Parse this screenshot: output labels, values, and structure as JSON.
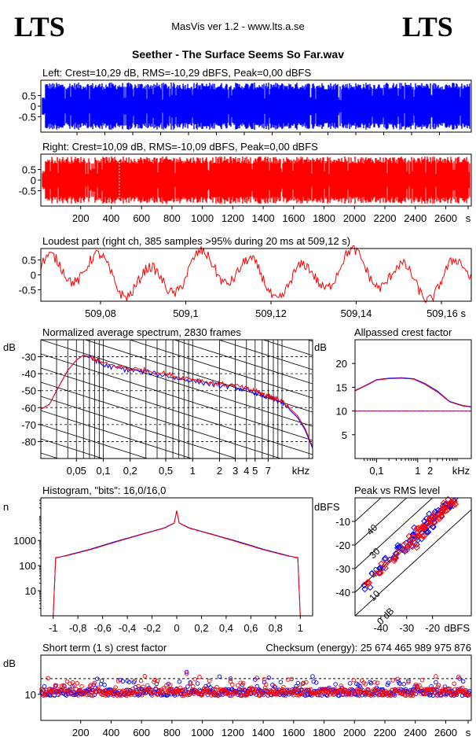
{
  "header": {
    "logo_left": "LTS",
    "logo_right": "LTS",
    "app_title": "MasVis ver 1.2 - www.lts.a.se",
    "file_title": "Seether - The Surface Seems So Far.wav"
  },
  "colors": {
    "left_channel": "#0000ff",
    "right_channel": "#ff0000",
    "axis": "#000000"
  },
  "chart_data": [
    {
      "id": "left_waveform",
      "type": "area",
      "title": "Left: Crest=10,29 dB, RMS=-10,29 dBFS, Peak=0,00 dBFS",
      "yticks": [
        "0.5",
        "0",
        "-0.5"
      ],
      "ylim": [
        -1,
        1
      ],
      "xlim": [
        0,
        2830
      ],
      "color": "#0000ff"
    },
    {
      "id": "right_waveform",
      "type": "area",
      "title": "Right: Crest=10,09 dB, RMS=-10,09 dBFS, Peak=0,00 dBFS",
      "yticks": [
        "0.5",
        "0",
        "-0.5"
      ],
      "xticks": [
        "200",
        "400",
        "600",
        "800",
        "1000",
        "1200",
        "1400",
        "1600",
        "1800",
        "2000",
        "2200",
        "2400",
        "2600",
        "s"
      ],
      "ylim": [
        -1,
        1
      ],
      "xlim": [
        0,
        2830
      ],
      "color": "#ff0000"
    },
    {
      "id": "loudest_part",
      "type": "line",
      "title": "Loudest part (right ch, 385 samples >95% during 20 ms at 509,12 s)",
      "yticks": [
        "0.5",
        "0",
        "-0.5"
      ],
      "xticks": [
        "509,08",
        "509,1",
        "509,12",
        "509,14",
        "509,16 s"
      ],
      "xlim": [
        509.066,
        509.167
      ],
      "ylim": [
        -1,
        1
      ],
      "color": "#ff0000"
    },
    {
      "id": "spectrum",
      "type": "line",
      "title": "Normalized average spectrum, 2830 frames",
      "ylabel": "dB",
      "yticks": [
        "-30",
        "-40",
        "-50",
        "-60",
        "-70",
        "-80"
      ],
      "xticks": [
        "0,05",
        "0,1",
        "0,2",
        "0,5",
        "1",
        "2",
        "3",
        "4",
        "5",
        "7",
        "kHz"
      ],
      "xscale": "log",
      "xlim": [
        0.02,
        22
      ],
      "ylim": [
        -90,
        -20
      ],
      "series": [
        {
          "color": "#0000ff",
          "x": [
            0.02,
            0.025,
            0.03,
            0.04,
            0.05,
            0.06,
            0.08,
            0.1,
            0.15,
            0.2,
            0.3,
            0.5,
            0.7,
            1,
            1.5,
            2,
            3,
            4,
            5,
            6,
            7,
            8,
            10,
            12,
            15,
            18,
            22
          ],
          "y": [
            -61,
            -58,
            -50,
            -38,
            -32,
            -29,
            -32,
            -35,
            -37,
            -38,
            -39,
            -41,
            -43,
            -44,
            -46,
            -47,
            -48,
            -50,
            -51,
            -53,
            -54,
            -55,
            -57,
            -61,
            -66,
            -73,
            -84
          ]
        },
        {
          "color": "#ff0000",
          "x": [
            0.02,
            0.025,
            0.03,
            0.04,
            0.05,
            0.06,
            0.08,
            0.1,
            0.15,
            0.2,
            0.3,
            0.5,
            0.7,
            1,
            1.5,
            2,
            3,
            4,
            5,
            6,
            7,
            8,
            10,
            12,
            15,
            18,
            22
          ],
          "y": [
            -61,
            -58,
            -50,
            -38,
            -32,
            -29,
            -31,
            -34,
            -36,
            -37,
            -38,
            -40,
            -42,
            -43,
            -45,
            -46,
            -47,
            -49,
            -50,
            -52,
            -53,
            -54,
            -56,
            -60,
            -65,
            -72,
            -83
          ]
        }
      ]
    },
    {
      "id": "allpassed_crest",
      "type": "line",
      "title": "Allpassed crest factor",
      "ylabel": "dB",
      "yticks": [
        "20",
        "15",
        "10",
        "5"
      ],
      "xticks": [
        "0,1",
        "1",
        "2",
        "kHz"
      ],
      "xscale": "log",
      "xlim": [
        0.03,
        20
      ],
      "ylim": [
        0,
        25
      ],
      "reference_level": 10,
      "series": [
        {
          "color": "#0000ff",
          "x": [
            0.03,
            0.06,
            0.1,
            0.2,
            0.4,
            0.8,
            1.5,
            3,
            6,
            12,
            20
          ],
          "y": [
            14.3,
            15.6,
            16.6,
            16.9,
            17.0,
            16.8,
            15.8,
            14.2,
            12.0,
            11.2,
            10.9
          ]
        },
        {
          "color": "#ff0000",
          "x": [
            0.03,
            0.06,
            0.1,
            0.2,
            0.4,
            0.8,
            1.5,
            3,
            6,
            12,
            20
          ],
          "y": [
            14.2,
            15.5,
            16.5,
            16.8,
            16.9,
            16.7,
            15.6,
            14.0,
            11.9,
            11.1,
            10.8
          ]
        }
      ]
    },
    {
      "id": "histogram",
      "type": "line",
      "title": "Histogram, \"bits\": 16,0/16,0",
      "ylabel": "n",
      "yscale": "log",
      "yticks": [
        "1000",
        "100",
        "10"
      ],
      "xticks": [
        "-1",
        "-0,8",
        "-0,6",
        "-0,4",
        "-0,2",
        "0",
        "0,2",
        "0,4",
        "0,6",
        "0,8",
        "1"
      ],
      "xlim": [
        -1.1,
        1.1
      ],
      "ylim": [
        1,
        50000
      ],
      "series": [
        {
          "color": "#0000ff",
          "x": [
            -1,
            -0.98,
            -0.9,
            -0.7,
            -0.5,
            -0.3,
            -0.1,
            -0.02,
            0,
            0.02,
            0.1,
            0.3,
            0.5,
            0.7,
            0.9,
            0.98,
            1
          ],
          "y": [
            1,
            200,
            250,
            450,
            900,
            1700,
            3200,
            5000,
            15000,
            5000,
            3200,
            1700,
            900,
            450,
            250,
            200,
            1
          ]
        },
        {
          "color": "#ff0000",
          "x": [
            -1,
            -0.98,
            -0.9,
            -0.7,
            -0.5,
            -0.3,
            -0.1,
            -0.02,
            0,
            0.02,
            0.1,
            0.3,
            0.5,
            0.7,
            0.9,
            0.98,
            1
          ],
          "y": [
            1,
            210,
            240,
            430,
            850,
            1650,
            3100,
            4900,
            15500,
            4900,
            3100,
            1650,
            850,
            430,
            240,
            210,
            1
          ]
        }
      ]
    },
    {
      "id": "peak_vs_rms",
      "type": "scatter",
      "title": "Peak vs RMS level",
      "ylabel": "dBFS",
      "xlabel": "dBFS",
      "yticks": [
        "-10",
        "-20",
        "-30",
        "-40"
      ],
      "xticks": [
        "-40",
        "-30",
        "-20"
      ],
      "xlim": [
        -50,
        -5
      ],
      "ylim": [
        -50,
        0
      ],
      "diagonal_labels": [
        "40",
        "30",
        "20",
        "10",
        "0 dB"
      ],
      "series": [
        {
          "color": "#0000ff",
          "points": [
            [
              -45,
              -38
            ],
            [
              -42,
              -32
            ],
            [
              -40,
              -30
            ],
            [
              -38,
              -27
            ],
            [
              -35,
              -25
            ],
            [
              -33,
              -22
            ],
            [
              -32,
              -20
            ],
            [
              -30,
              -22
            ],
            [
              -29,
              -18
            ],
            [
              -28,
              -16
            ],
            [
              -27,
              -19
            ],
            [
              -26,
              -14
            ],
            [
              -25,
              -16
            ],
            [
              -24,
              -12
            ],
            [
              -23,
              -13
            ],
            [
              -22,
              -10
            ],
            [
              -21,
              -11
            ],
            [
              -20,
              -8
            ],
            [
              -19,
              -9
            ],
            [
              -18,
              -7
            ],
            [
              -17,
              -6
            ],
            [
              -16,
              -5
            ],
            [
              -15,
              -4
            ],
            [
              -14,
              -3
            ],
            [
              -13,
              -2
            ]
          ]
        },
        {
          "color": "#ff0000",
          "points": [
            [
              -44,
              -36
            ],
            [
              -41,
              -33
            ],
            [
              -39,
              -29
            ],
            [
              -36,
              -26
            ],
            [
              -34,
              -24
            ],
            [
              -31,
              -21
            ],
            [
              -30,
              -19
            ],
            [
              -28,
              -17
            ],
            [
              -27,
              -20
            ],
            [
              -26,
              -15
            ],
            [
              -25,
              -13
            ],
            [
              -24,
              -15
            ],
            [
              -23,
              -11
            ],
            [
              -22,
              -12
            ],
            [
              -21,
              -9
            ],
            [
              -20,
              -10
            ],
            [
              -19,
              -7
            ],
            [
              -18,
              -8
            ],
            [
              -17,
              -5
            ],
            [
              -16,
              -6
            ],
            [
              -15,
              -3
            ],
            [
              -14,
              -4
            ],
            [
              -13,
              -2
            ],
            [
              -12,
              -1
            ],
            [
              -11,
              -2
            ]
          ]
        }
      ]
    },
    {
      "id": "short_term_crest",
      "type": "scatter",
      "title": "Short term (1 s) crest factor",
      "annotation": "Checksum (energy):  25 674 465 989 975 876",
      "ylabel": "dB",
      "yticks": [
        "10"
      ],
      "xticks": [
        "200",
        "400",
        "600",
        "800",
        "1000",
        "1200",
        "1400",
        "1600",
        "1800",
        "2000",
        "2200",
        "2400",
        "2600",
        "s"
      ],
      "xlim": [
        0,
        2830
      ],
      "ylim": [
        0,
        25
      ],
      "reference_level": 16
    }
  ]
}
